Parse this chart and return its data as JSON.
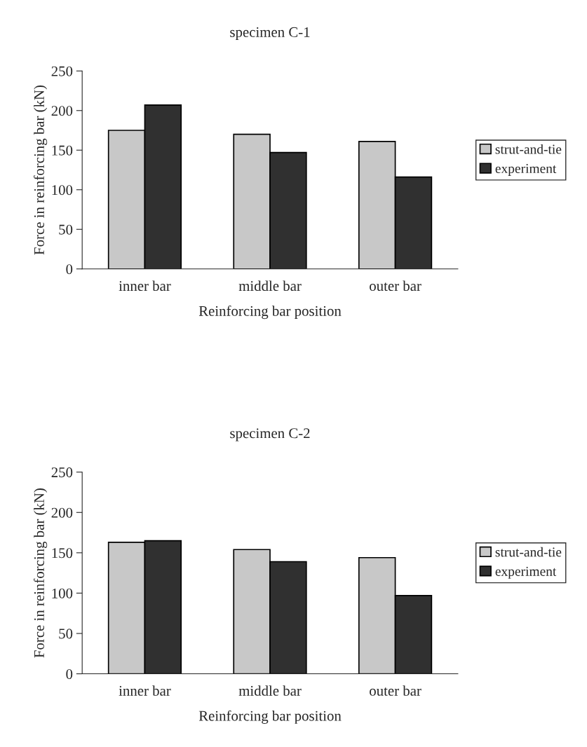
{
  "chart_data": [
    {
      "type": "bar",
      "title": "specimen C-1",
      "xlabel": "Reinforcing bar position",
      "ylabel": "Force in reinforcing bar (kN)",
      "categories": [
        "inner bar",
        "middle bar",
        "outer bar"
      ],
      "series": [
        {
          "name": "strut-and-tie",
          "color": "#c8c8c8",
          "values": [
            175,
            170,
            161
          ]
        },
        {
          "name": "experiment",
          "color": "#303030",
          "values": [
            207,
            147,
            116
          ]
        }
      ],
      "ylim": [
        0,
        250
      ],
      "yticks": [
        0,
        50,
        100,
        150,
        200,
        250
      ],
      "grid": false,
      "legend": "right"
    },
    {
      "type": "bar",
      "title": "specimen C-2",
      "xlabel": "Reinforcing bar position",
      "ylabel": "Force in reinforcing bar (kN)",
      "categories": [
        "inner bar",
        "middle bar",
        "outer bar"
      ],
      "series": [
        {
          "name": "strut-and-tie",
          "color": "#c8c8c8",
          "values": [
            163,
            154,
            144
          ]
        },
        {
          "name": "experiment",
          "color": "#303030",
          "values": [
            165,
            139,
            97
          ]
        }
      ],
      "ylim": [
        0,
        250
      ],
      "yticks": [
        0,
        50,
        100,
        150,
        200,
        250
      ],
      "grid": false,
      "legend": "right"
    }
  ]
}
